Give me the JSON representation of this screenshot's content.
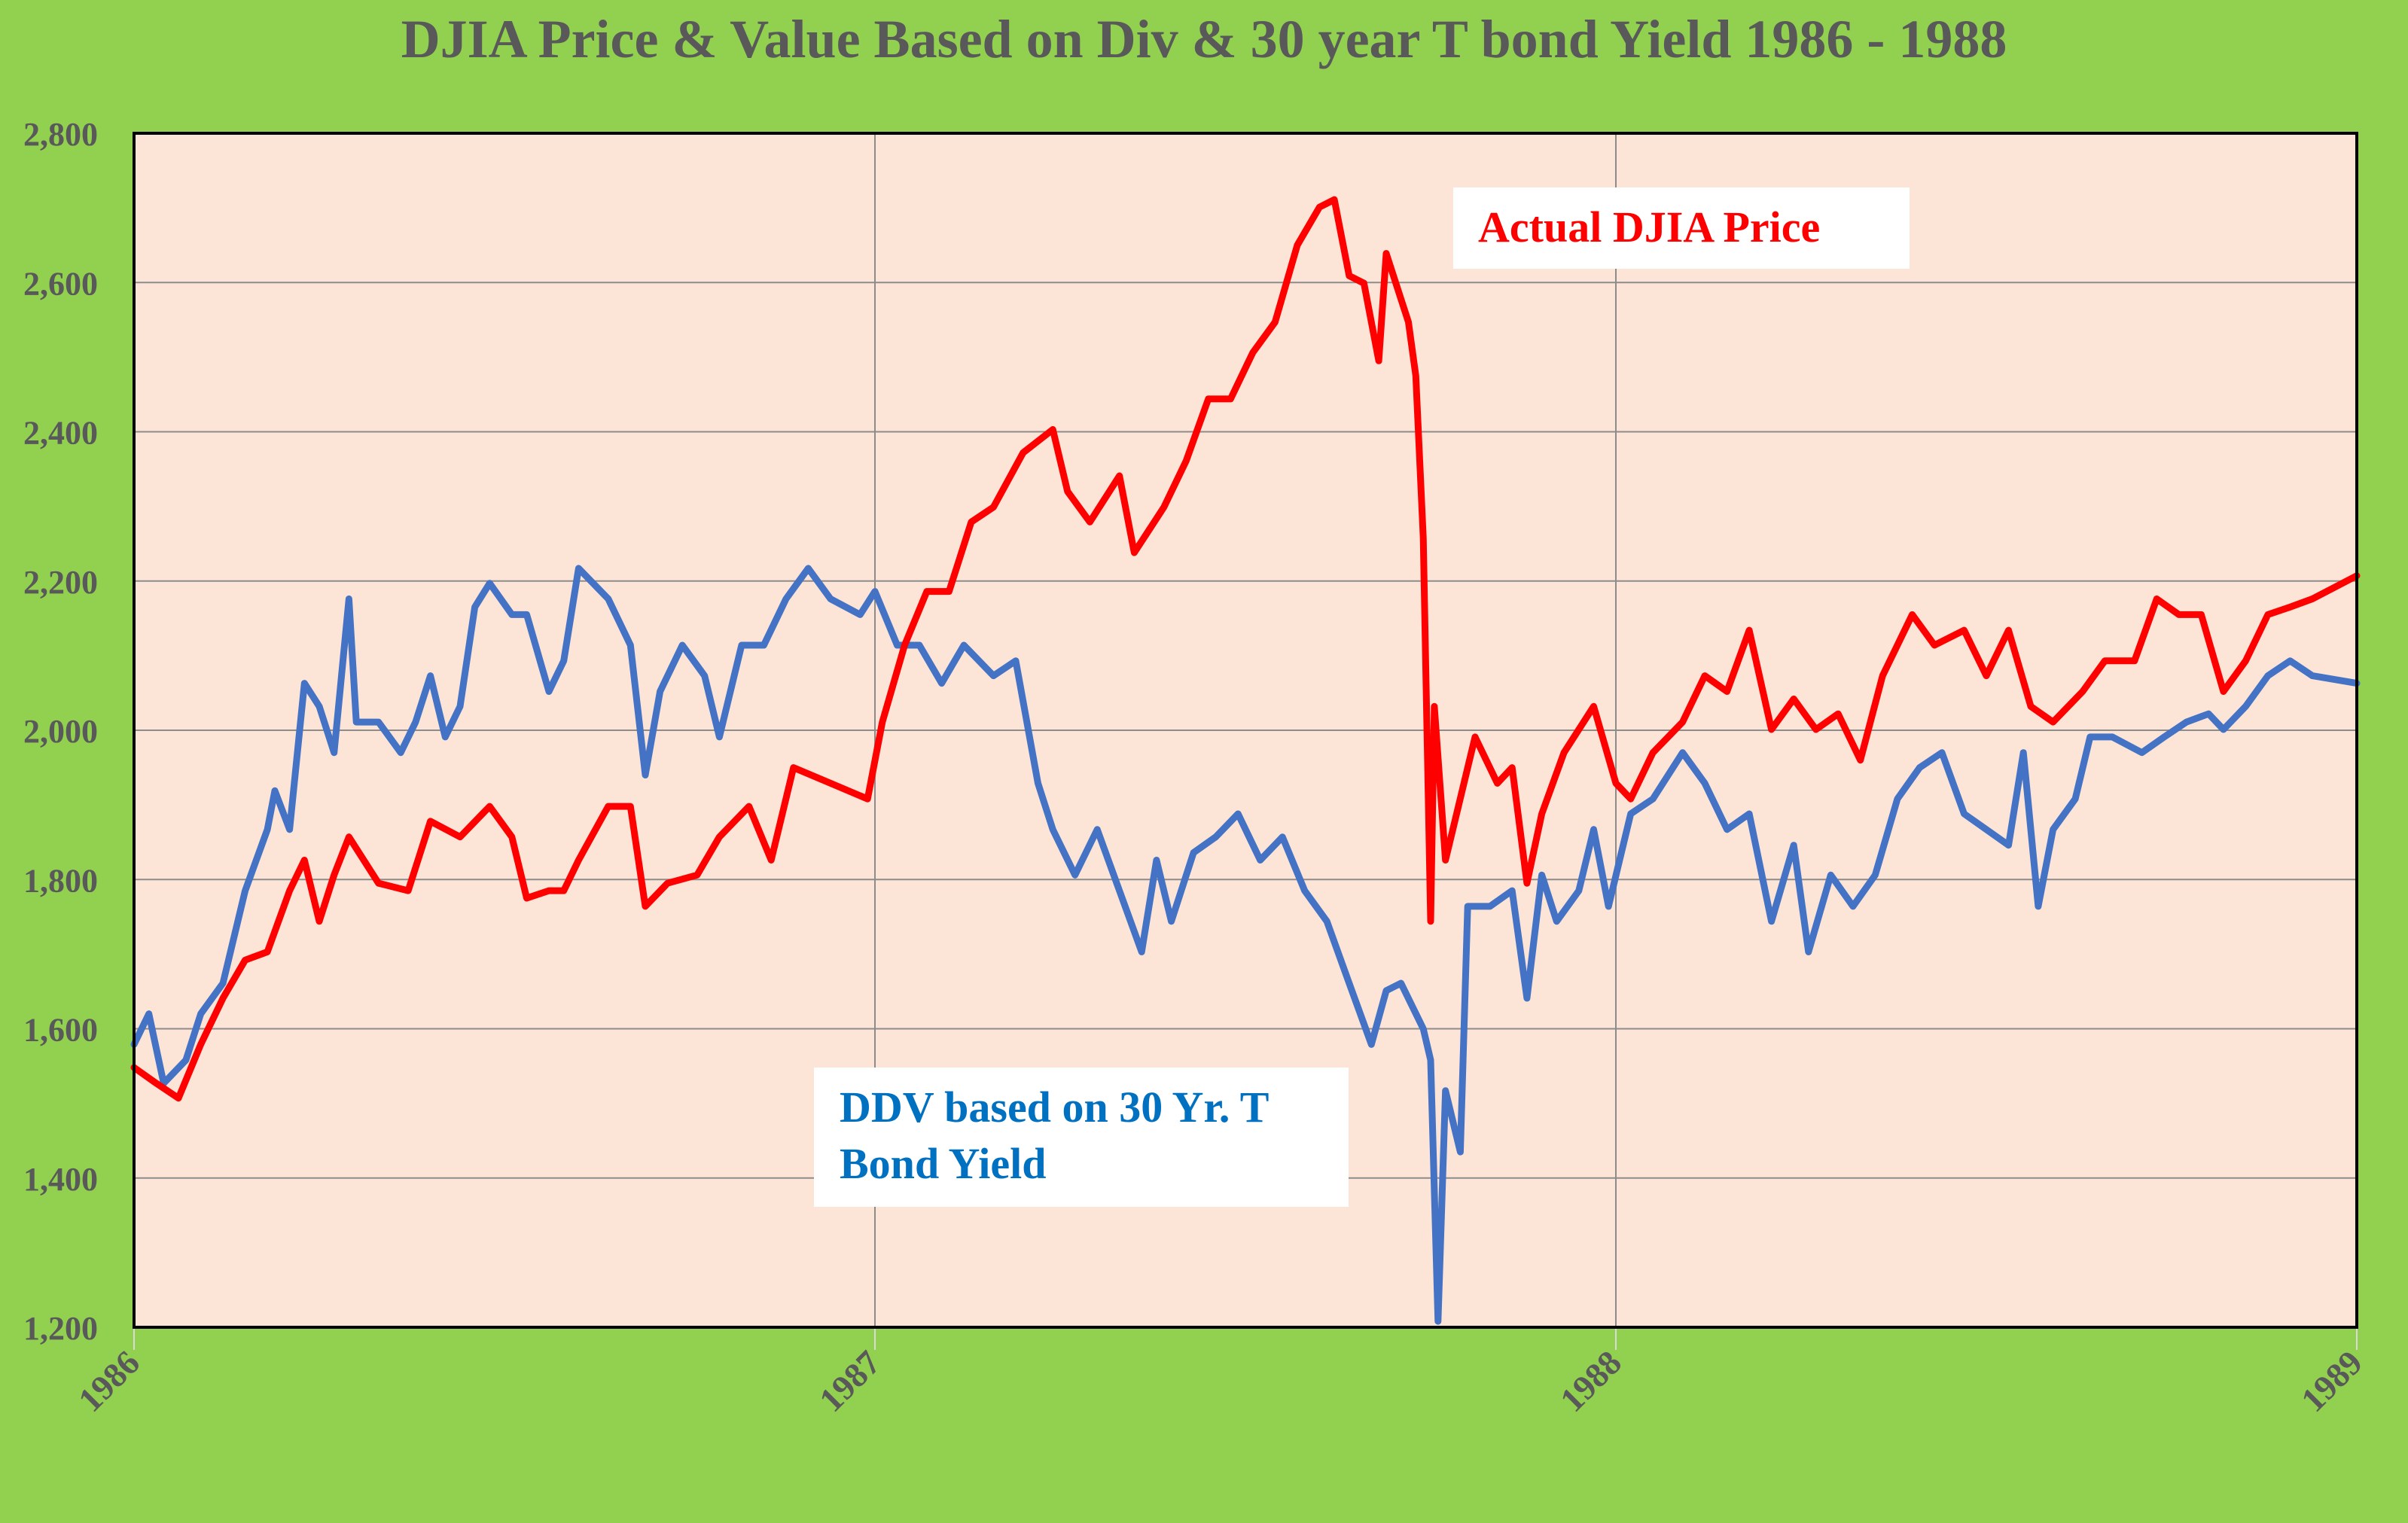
{
  "colors": {
    "background": "#92d050",
    "plot_bg": "#fce4d6",
    "djia": "#ff0000",
    "ddv": "#4472c4",
    "ddv_label": "#0070c0",
    "title": "#595959",
    "grid": "#8c8c8c"
  },
  "chart_data": {
    "type": "line",
    "title": "DJIA Price & Value Based on Div & 30 year T bond Yield 1986 - 1988",
    "xlabel": "",
    "ylabel": "",
    "xlim": [
      1986,
      1989
    ],
    "ylim": [
      1200,
      2800
    ],
    "grid": true,
    "x_ticks": [
      1986,
      1987,
      1988,
      1989
    ],
    "x_tick_labels": [
      "1986",
      "1987",
      "1988",
      "1989"
    ],
    "y_ticks": [
      1200,
      1400,
      1600,
      1800,
      2000,
      2200,
      2400,
      2600,
      2800
    ],
    "y_tick_labels": [
      "1,200",
      "1,400",
      "1,600",
      "1,800",
      "2,000",
      "2,200",
      "2,400",
      "2,600",
      "2,800"
    ],
    "annotations": [
      {
        "series": "djia",
        "text": "Actual DJIA Price"
      },
      {
        "series": "ddv",
        "lines": [
          "DDV based on 30 Yr. T",
          "Bond Yield"
        ]
      }
    ],
    "series": [
      {
        "name": "Actual DJIA Price",
        "key": "djia",
        "x": [
          1986.0,
          1986.03,
          1986.06,
          1986.09,
          1986.12,
          1986.15,
          1986.18,
          1986.21,
          1986.23,
          1986.25,
          1986.27,
          1986.29,
          1986.33,
          1986.37,
          1986.4,
          1986.44,
          1986.48,
          1986.51,
          1986.53,
          1986.56,
          1986.58,
          1986.6,
          1986.64,
          1986.67,
          1986.69,
          1986.72,
          1986.76,
          1986.79,
          1986.83,
          1986.86,
          1986.89,
          1986.94,
          1986.99,
          1987.01,
          1987.04,
          1987.07,
          1987.1,
          1987.13,
          1987.16,
          1987.2,
          1987.24,
          1987.26,
          1987.29,
          1987.33,
          1987.35,
          1987.39,
          1987.42,
          1987.45,
          1987.48,
          1987.51,
          1987.54,
          1987.57,
          1987.6,
          1987.62,
          1987.64,
          1987.66,
          1987.68,
          1987.69,
          1987.72,
          1987.73,
          1987.74,
          1987.75,
          1987.755,
          1987.77,
          1987.81,
          1987.84,
          1987.86,
          1987.88,
          1987.9,
          1987.93,
          1987.97,
          1988.0,
          1988.02,
          1988.05,
          1988.09,
          1988.12,
          1988.15,
          1988.18,
          1988.21,
          1988.24,
          1988.27,
          1988.3,
          1988.33,
          1988.36,
          1988.4,
          1988.43,
          1988.47,
          1988.5,
          1988.53,
          1988.56,
          1988.59,
          1988.63,
          1988.66,
          1988.7,
          1988.73,
          1988.76,
          1988.79,
          1988.82,
          1988.85,
          1988.88,
          1988.91,
          1988.94,
          1989.0
        ],
        "values": [
          1548,
          1527,
          1507,
          1579,
          1641,
          1692,
          1703,
          1785,
          1826,
          1744,
          1806,
          1857,
          1795,
          1785,
          1878,
          1857,
          1898,
          1857,
          1775,
          1785,
          1785,
          1826,
          1898,
          1898,
          1764,
          1795,
          1806,
          1857,
          1898,
          1826,
          1950,
          1929,
          1908,
          2011,
          2114,
          2186,
          2186,
          2279,
          2299,
          2372,
          2403,
          2320,
          2279,
          2341,
          2238,
          2299,
          2361,
          2444,
          2444,
          2506,
          2547,
          2650,
          2701,
          2711,
          2609,
          2599,
          2495,
          2639,
          2547,
          2475,
          2258,
          1744,
          2032,
          1826,
          1991,
          1929,
          1950,
          1795,
          1888,
          1970,
          2032,
          1929,
          1908,
          1970,
          2011,
          2073,
          2052,
          2134,
          2001,
          2042,
          2001,
          2022,
          1960,
          2073,
          2155,
          2114,
          2134,
          2073,
          2134,
          2032,
          2011,
          2052,
          2093,
          2093,
          2176,
          2155,
          2155,
          2052,
          2093,
          2155,
          2165,
          2176,
          2207
        ]
      },
      {
        "name": "DDV based on 30 Yr. T Bond Yield",
        "key": "ddv",
        "x": [
          1986.0,
          1986.02,
          1986.04,
          1986.07,
          1986.09,
          1986.12,
          1986.15,
          1986.18,
          1986.19,
          1986.21,
          1986.23,
          1986.25,
          1986.27,
          1986.29,
          1986.3,
          1986.33,
          1986.36,
          1986.38,
          1986.4,
          1986.42,
          1986.44,
          1986.46,
          1986.48,
          1986.51,
          1986.53,
          1986.56,
          1986.58,
          1986.6,
          1986.64,
          1986.67,
          1986.69,
          1986.71,
          1986.74,
          1986.77,
          1986.79,
          1986.82,
          1986.85,
          1986.88,
          1986.91,
          1986.94,
          1986.98,
          1987.0,
          1987.03,
          1987.06,
          1987.09,
          1987.12,
          1987.16,
          1987.19,
          1987.22,
          1987.24,
          1987.27,
          1987.3,
          1987.33,
          1987.36,
          1987.38,
          1987.4,
          1987.43,
          1987.46,
          1987.49,
          1987.52,
          1987.55,
          1987.58,
          1987.61,
          1987.64,
          1987.67,
          1987.69,
          1987.71,
          1987.74,
          1987.75,
          1987.76,
          1987.77,
          1987.79,
          1987.8,
          1987.83,
          1987.86,
          1987.88,
          1987.9,
          1987.92,
          1987.95,
          1987.97,
          1987.99,
          1988.02,
          1988.05,
          1988.09,
          1988.12,
          1988.15,
          1988.18,
          1988.21,
          1988.24,
          1988.26,
          1988.29,
          1988.32,
          1988.35,
          1988.38,
          1988.41,
          1988.44,
          1988.47,
          1988.5,
          1988.53,
          1988.55,
          1988.57,
          1988.59,
          1988.62,
          1988.64,
          1988.67,
          1988.71,
          1988.74,
          1988.77,
          1988.8,
          1988.82,
          1988.85,
          1988.88,
          1988.91,
          1988.94,
          1989.0
        ],
        "values": [
          1579,
          1620,
          1527,
          1558,
          1620,
          1661,
          1785,
          1867,
          1919,
          1867,
          2063,
          2032,
          1970,
          2176,
          2011,
          2011,
          1970,
          2011,
          2073,
          1991,
          2032,
          2165,
          2197,
          2155,
          2155,
          2052,
          2093,
          2217,
          2176,
          2114,
          1940,
          2052,
          2114,
          2073,
          1991,
          2114,
          2114,
          2176,
          2217,
          2176,
          2155,
          2186,
          2114,
          2114,
          2063,
          2114,
          2073,
          2093,
          1929,
          1867,
          1806,
          1867,
          1785,
          1703,
          1826,
          1744,
          1836,
          1857,
          1888,
          1826,
          1857,
          1785,
          1744,
          1661,
          1579,
          1651,
          1661,
          1600,
          1558,
          1208,
          1517,
          1435,
          1764,
          1764,
          1785,
          1641,
          1806,
          1744,
          1785,
          1867,
          1764,
          1888,
          1908,
          1970,
          1929,
          1867,
          1888,
          1744,
          1846,
          1703,
          1806,
          1764,
          1806,
          1908,
          1950,
          1970,
          1888,
          1867,
          1846,
          1970,
          1764,
          1867,
          1908,
          1991,
          1991,
          1970,
          1991,
          2011,
          2022,
          2001,
          2032,
          2073,
          2093,
          2073,
          2063
        ]
      }
    ]
  }
}
